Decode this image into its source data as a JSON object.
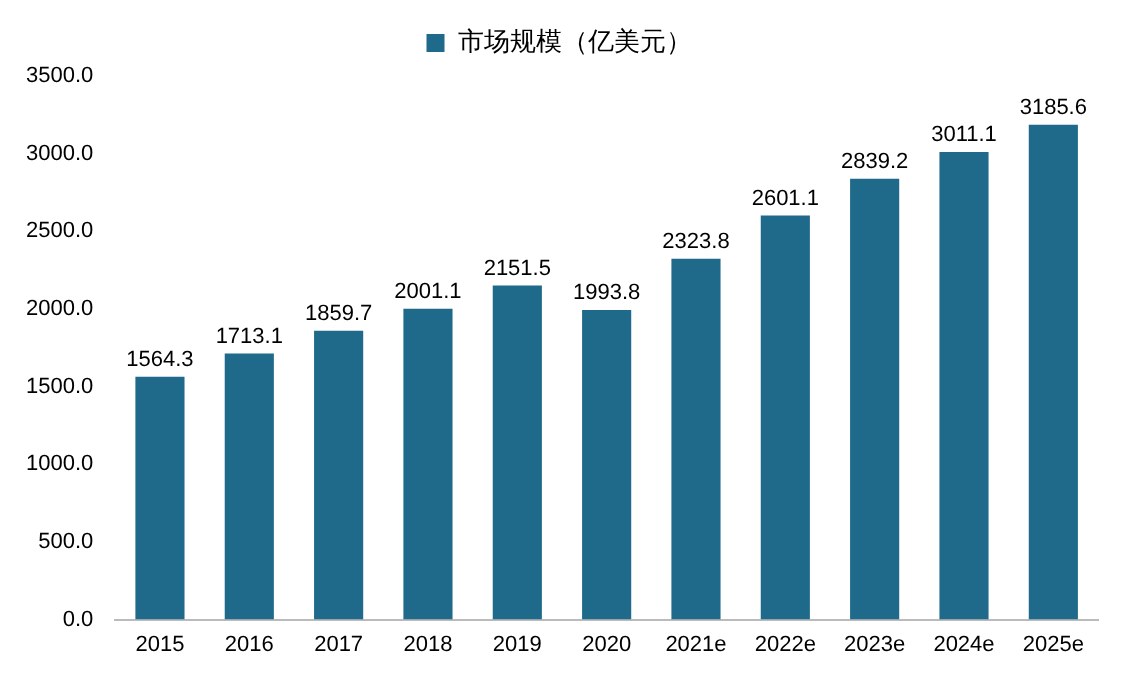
{
  "chart_data": {
    "type": "bar",
    "categories": [
      "2015",
      "2016",
      "2017",
      "2018",
      "2019",
      "2020",
      "2021e",
      "2022e",
      "2023e",
      "2024e",
      "2025e"
    ],
    "series": [
      {
        "name": "市场规模（亿美元）",
        "color": "#1f6a8a",
        "values": [
          1564.3,
          1713.1,
          1859.7,
          2001.1,
          2151.5,
          1993.8,
          2323.8,
          2601.1,
          2839.2,
          3011.1,
          3185.6
        ]
      }
    ],
    "ylim": [
      0,
      3500
    ],
    "yticks": [
      {
        "value": 0,
        "label": "0.0"
      },
      {
        "value": 500,
        "label": "500.0"
      },
      {
        "value": 1000,
        "label": "1000.0"
      },
      {
        "value": 1500,
        "label": "1500.0"
      },
      {
        "value": 2000,
        "label": "2000.0"
      },
      {
        "value": 2500,
        "label": "2500.0"
      },
      {
        "value": 3000,
        "label": "3000.0"
      },
      {
        "value": 3500,
        "label": "3500.0"
      }
    ],
    "grid": false,
    "legend": "top",
    "data_labels": true
  }
}
